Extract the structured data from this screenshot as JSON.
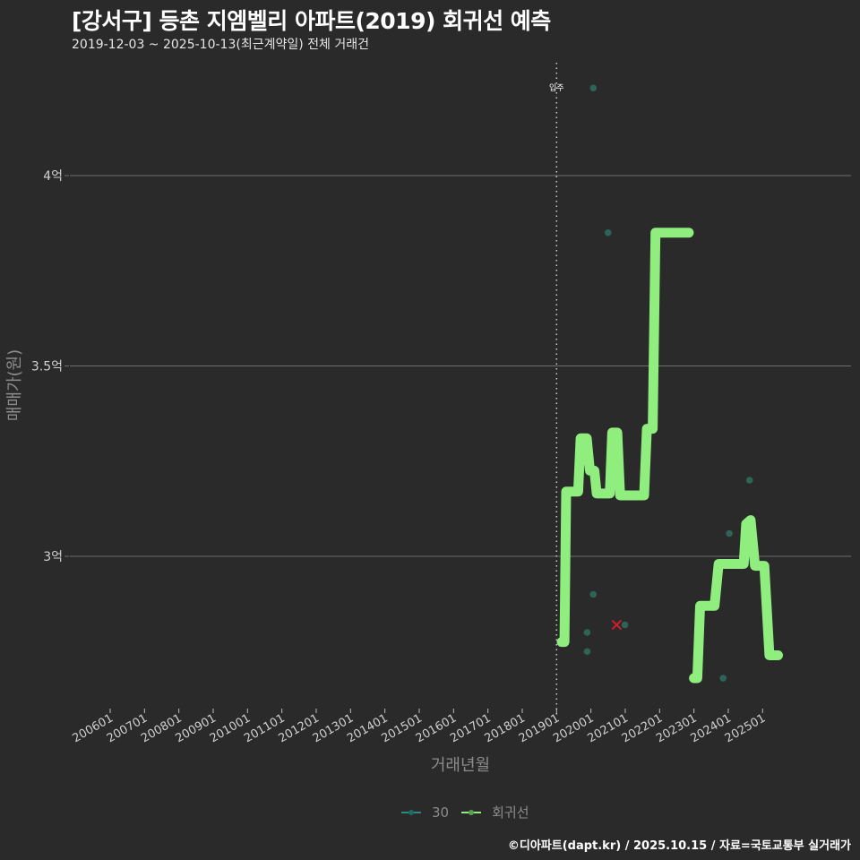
{
  "header": {
    "title": "[강서구] 등촌 지엠벨리 아파트(2019) 회귀선 예측",
    "subtitle": "2019-12-03 ~ 2025-10-13(최근계약일) 전체 거래건"
  },
  "footer": {
    "credit": "©디아파트(dapt.kr) / 2025.10.15 / 자료=국토교통부 실거래가"
  },
  "legend": {
    "items": [
      {
        "label": "30",
        "color": "#2a8a86"
      },
      {
        "label": "회귀선",
        "color": "#90ee7e"
      }
    ]
  },
  "colors": {
    "background": "#2a2a2b",
    "grid": "#6e6e6e",
    "regression": "#90ee7e",
    "scatter": "#2e6e5e",
    "outlier": "#d01c2a",
    "vline": "#cfcfcf"
  },
  "chart_data": {
    "type": "line",
    "title": "[강서구] 등촌 지엠벨리 아파트(2019) 회귀선 예측",
    "subtitle": "2019-12-03 ~ 2025-10-13(최근계약일) 전체 거래건",
    "xlabel": "거래년월",
    "ylabel": "매매가(원)",
    "x_tick_labels": [
      "200601",
      "200701",
      "200801",
      "200901",
      "201001",
      "201101",
      "201201",
      "201301",
      "201401",
      "201501",
      "201601",
      "201701",
      "201801",
      "201901",
      "202001",
      "202101",
      "202201",
      "202301",
      "202401",
      "202501"
    ],
    "y_ticks": [
      {
        "value": 3.0,
        "label": "3억"
      },
      {
        "value": 3.5,
        "label": "3.5억"
      },
      {
        "value": 4.0,
        "label": "4억"
      }
    ],
    "ylim": [
      2.62,
      4.3
    ],
    "xlim_years": [
      2005.0,
      2026.3
    ],
    "grid": "horizontal",
    "legend_position": "bottom",
    "annotation": {
      "label": "입주",
      "x_year": 2019.0
    },
    "series": [
      {
        "name": "30",
        "kind": "scatter",
        "points": [
          {
            "x": 2020.07,
            "y": 4.23
          },
          {
            "x": 2020.5,
            "y": 3.85
          },
          {
            "x": 2020.07,
            "y": 2.9
          },
          {
            "x": 2019.89,
            "y": 2.8
          },
          {
            "x": 2019.89,
            "y": 2.75
          },
          {
            "x": 2020.99,
            "y": 2.82
          },
          {
            "x": 2023.85,
            "y": 2.68
          },
          {
            "x": 2024.03,
            "y": 3.06
          },
          {
            "x": 2024.62,
            "y": 3.2
          }
        ]
      },
      {
        "name": "outlier",
        "kind": "x-marker",
        "points": [
          {
            "x": 2020.75,
            "y": 2.82
          }
        ]
      },
      {
        "name": "회귀선",
        "kind": "line",
        "points": [
          {
            "x": 2019.15,
            "y": 2.775
          },
          {
            "x": 2019.23,
            "y": 2.775
          },
          {
            "x": 2019.28,
            "y": 3.17
          },
          {
            "x": 2019.63,
            "y": 3.17
          },
          {
            "x": 2019.7,
            "y": 3.31
          },
          {
            "x": 2019.88,
            "y": 3.31
          },
          {
            "x": 2019.97,
            "y": 3.225
          },
          {
            "x": 2020.1,
            "y": 3.225
          },
          {
            "x": 2020.17,
            "y": 3.165
          },
          {
            "x": 2020.55,
            "y": 3.165
          },
          {
            "x": 2020.62,
            "y": 3.325
          },
          {
            "x": 2020.77,
            "y": 3.325
          },
          {
            "x": 2020.85,
            "y": 3.16
          },
          {
            "x": 2021.55,
            "y": 3.16
          },
          {
            "x": 2021.63,
            "y": 3.335
          },
          {
            "x": 2021.8,
            "y": 3.335
          },
          {
            "x": 2021.88,
            "y": 3.85
          },
          {
            "x": 2022.85,
            "y": 3.85
          }
        ]
      },
      {
        "name": "회귀선",
        "kind": "line",
        "points": [
          {
            "x": 2023.0,
            "y": 2.68
          },
          {
            "x": 2023.1,
            "y": 2.68
          },
          {
            "x": 2023.18,
            "y": 2.87
          },
          {
            "x": 2023.6,
            "y": 2.87
          },
          {
            "x": 2023.72,
            "y": 2.98
          },
          {
            "x": 2024.45,
            "y": 2.98
          },
          {
            "x": 2024.52,
            "y": 3.085
          },
          {
            "x": 2024.65,
            "y": 3.095
          },
          {
            "x": 2024.78,
            "y": 2.975
          },
          {
            "x": 2025.05,
            "y": 2.975
          },
          {
            "x": 2025.2,
            "y": 2.74
          },
          {
            "x": 2025.45,
            "y": 2.74
          }
        ]
      }
    ]
  }
}
